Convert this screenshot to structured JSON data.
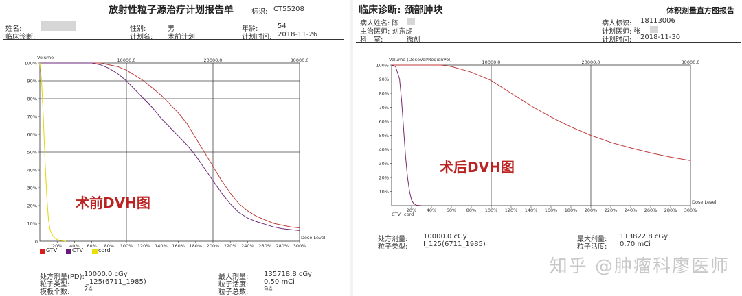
{
  "left": {
    "title": "放射性粒子源治疗计划报告单",
    "id_label": "标识:",
    "id_value": "CT55208",
    "name_label": "姓名:",
    "diag_label": "临床诊断:",
    "sex_label": "性别:",
    "sex_value": "男",
    "plan_label": "计划名:",
    "plan_value": "术前计划",
    "age_label": "年龄:",
    "age_value": "54",
    "time_label": "计划时间:",
    "time_value": "2018-11-26",
    "annotation": "术前DVH图",
    "footer": {
      "pd_label": "处方剂量(PD):",
      "pd_value": "10000.0 cGy",
      "seed_label": "粒子类型:",
      "seed_value": "I_125(6711_1985)",
      "template_label": "模板个数:",
      "template_value": "24",
      "max_label": "最大剂量:",
      "max_value": "135718.8 cGy",
      "activity_label": "粒子活度:",
      "activity_value": "0.50 mCi",
      "total_label": "粒子总数:",
      "total_value": "94"
    }
  },
  "right": {
    "title": "临床诊断: 颈部肿块",
    "report_title": "体积剂量直方图报告",
    "patient_label": "病人姓名: 陈",
    "doctor_label": "主治医师: 刘东虎",
    "dept_label": "科　室:",
    "dept_value": "微创",
    "pid_label": "病人标识:",
    "pid_value": "18113006",
    "planner_label": "计划医师: 张",
    "time_label": "计划时间:",
    "time_value": "2018-11-30",
    "annotation": "术后DVH图",
    "footer": {
      "rx_label": "处方剂量:",
      "rx_value": "10000.0 cGy",
      "seed_label": "粒子类型:",
      "seed_value": "I_125(6711_1985)",
      "max_label": "最大剂量:",
      "max_value": "113822.8 cGy",
      "activity_label": "粒子活度:",
      "activity_value": "0.70 mCi"
    }
  },
  "watermark": "知乎 @肿瘤科廖医师",
  "chart_data": [
    {
      "type": "line",
      "title": "",
      "ylabel": "Volume",
      "xlabel": "Dose Level",
      "xlim": [
        0,
        300
      ],
      "ylim": [
        0,
        100
      ],
      "x_ticks": [
        "20%",
        "40%",
        "60%",
        "80%",
        "100%",
        "120%",
        "140%",
        "160%",
        "180%",
        "200%",
        "220%",
        "240%",
        "260%",
        "280%",
        "300%"
      ],
      "y_ticks": [
        "10%",
        "20%",
        "30%",
        "40%",
        "50%",
        "60%",
        "70%",
        "80%",
        "90%",
        "100%"
      ],
      "top_ticks": [
        "10000.0",
        "20000.0",
        "30000.0"
      ],
      "zero_label": "0",
      "legend": [
        {
          "name": "GTV",
          "color": "#d62020"
        },
        {
          "name": "CTV",
          "color": "#6a1a7a"
        },
        {
          "name": "cord",
          "color": "#e8e000"
        }
      ],
      "series": [
        {
          "name": "GTV",
          "color": "#c03a3a",
          "x": [
            0,
            60,
            70,
            80,
            90,
            100,
            110,
            120,
            130,
            140,
            150,
            160,
            170,
            180,
            190,
            200,
            210,
            220,
            230,
            240,
            250,
            260,
            270,
            280,
            290,
            300
          ],
          "y": [
            100,
            100,
            100,
            99,
            98,
            96,
            93,
            90,
            86,
            82,
            77,
            72,
            66,
            58,
            50,
            42,
            34,
            27,
            21,
            17,
            14,
            12,
            10,
            9,
            8,
            7.5
          ]
        },
        {
          "name": "CTV",
          "color": "#6a2a7a",
          "x": [
            0,
            60,
            70,
            80,
            90,
            100,
            110,
            120,
            130,
            140,
            150,
            160,
            170,
            180,
            190,
            200,
            210,
            220,
            230,
            240,
            250,
            260,
            270,
            280,
            290,
            300
          ],
          "y": [
            100,
            100,
            99,
            97,
            94,
            90,
            85,
            80,
            75,
            69,
            64,
            59,
            54,
            48,
            41,
            34,
            27,
            21,
            16,
            13,
            11,
            9.5,
            8,
            7,
            6.5,
            6
          ]
        },
        {
          "name": "cord",
          "color": "#e0d800",
          "x": [
            0,
            2,
            4,
            6,
            8,
            10,
            12,
            15,
            18,
            22,
            30
          ],
          "y": [
            100,
            90,
            70,
            45,
            25,
            12,
            6,
            3,
            1.5,
            0.5,
            0
          ]
        }
      ]
    },
    {
      "type": "line",
      "title": "",
      "ylabel": "Volume (DoseVol/RegionVol)",
      "xlabel": "Dose Level",
      "xlim": [
        0,
        300
      ],
      "ylim": [
        0,
        100
      ],
      "x_ticks": [
        "20%",
        "40%",
        "60%",
        "80%",
        "100%",
        "120%",
        "140%",
        "160%",
        "180%",
        "200%",
        "220%",
        "240%",
        "260%",
        "280%",
        "300%"
      ],
      "y_ticks": [
        "10%",
        "20%",
        "30%",
        "40%",
        "50%",
        "60%",
        "70%",
        "80%",
        "90%",
        "100%"
      ],
      "top_ticks": [
        "10000.0",
        "20000.0",
        "30000.0"
      ],
      "series_labels": [
        "CTV",
        "cord"
      ],
      "series": [
        {
          "name": "CTV",
          "color": "#c03a3a",
          "x": [
            0,
            40,
            50,
            60,
            70,
            80,
            90,
            100,
            120,
            140,
            160,
            180,
            200,
            220,
            240,
            260,
            280,
            300
          ],
          "y": [
            100,
            100,
            100,
            99,
            97,
            95,
            92,
            89,
            80,
            71,
            63,
            56,
            50,
            45,
            41,
            37.5,
            34.5,
            32
          ]
        },
        {
          "name": "cord",
          "color": "#7a2a6a",
          "x": [
            0,
            4,
            8,
            10,
            12,
            14,
            16,
            18,
            20,
            22,
            25,
            30
          ],
          "y": [
            100,
            99,
            90,
            75,
            55,
            35,
            20,
            10,
            4,
            1.5,
            0.3,
            0
          ]
        }
      ]
    }
  ]
}
